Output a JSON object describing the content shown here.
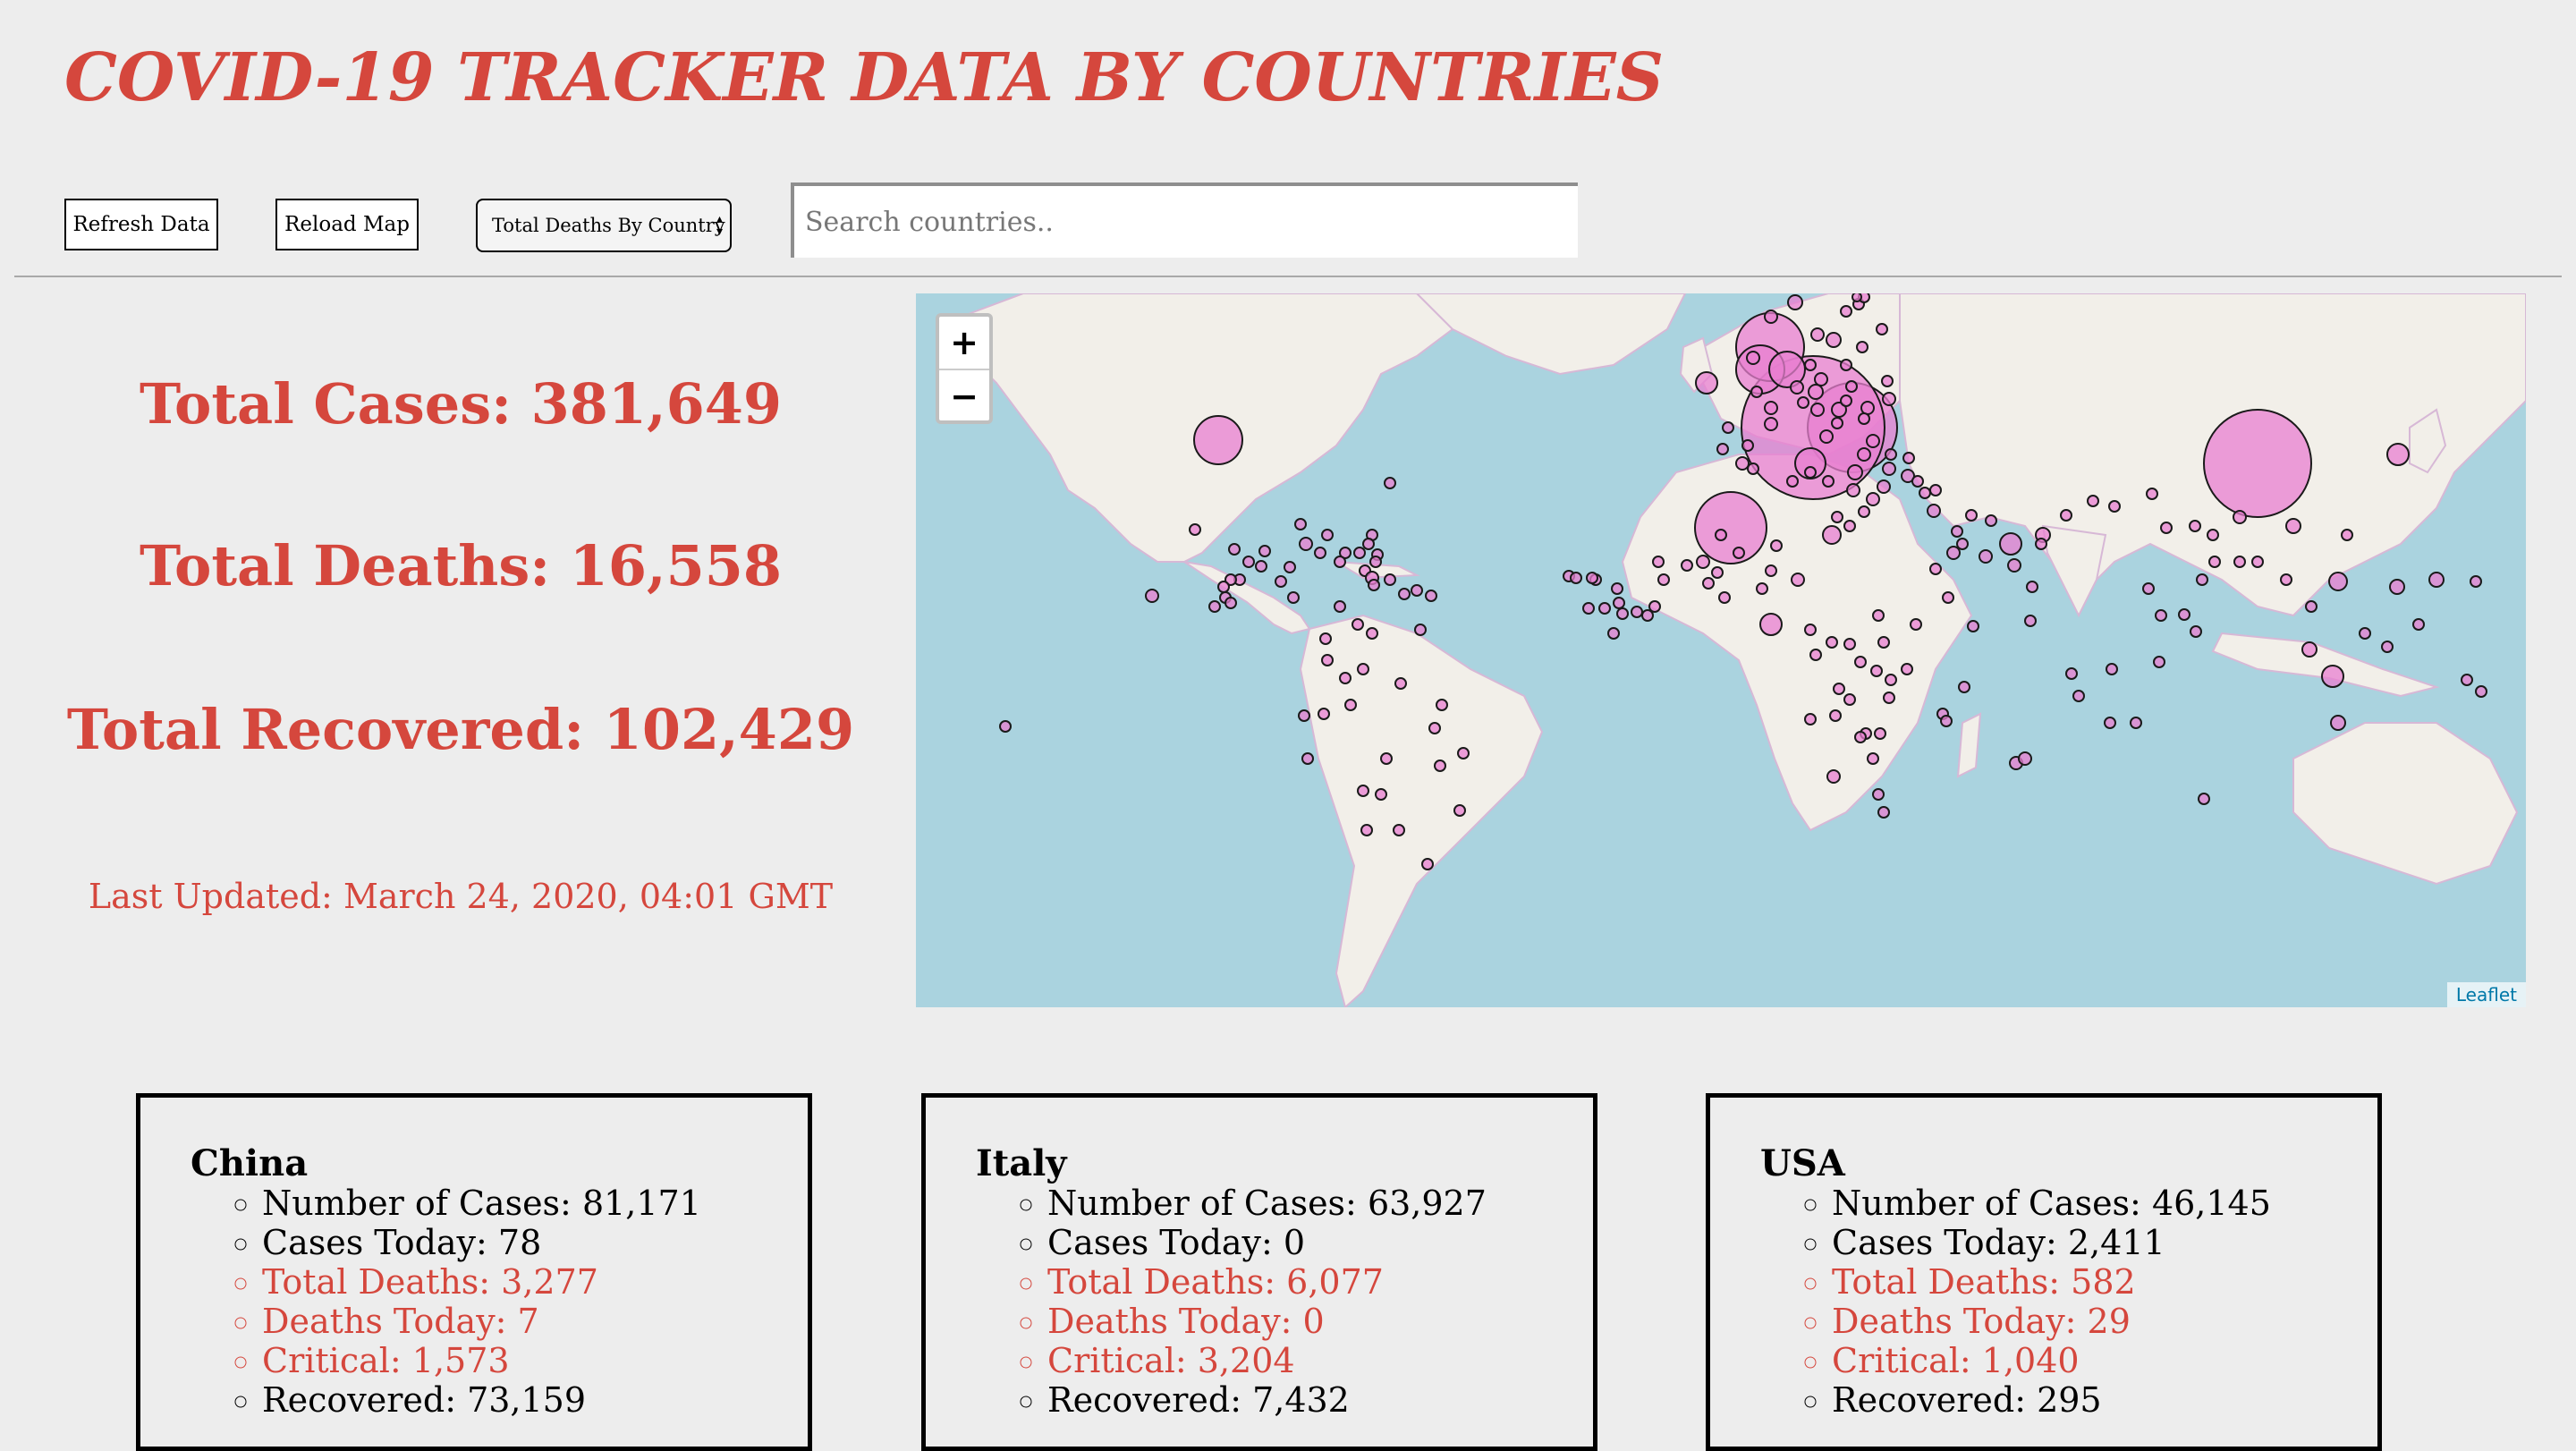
{
  "header": {
    "title": "COVID-19 TRACKER DATA BY COUNTRIES"
  },
  "toolbar": {
    "refresh_label": "Refresh Data",
    "reload_label": "Reload Map",
    "select_value": "Total Deaths By Country",
    "search_placeholder": "Search countries.."
  },
  "stats": {
    "cases": "Total Cases: 381,649",
    "deaths": "Total Deaths: 16,558",
    "recovered": "Total Recovered: 102,429",
    "last_updated": "Last Updated: March 24, 2020, 04:01 GMT"
  },
  "map": {
    "zoom_in": "+",
    "zoom_out": "−",
    "attribution": "Leaflet",
    "colors": {
      "water": "#aad3df",
      "land": "#f2efe9",
      "marker_fill": "#e87fd0",
      "marker_stroke": "#1a1a1a"
    }
  },
  "countries": [
    {
      "name": "China",
      "cases": "Number of Cases: 81,171",
      "cases_today": "Cases Today: 78",
      "deaths": "Total Deaths: 3,277",
      "deaths_today": "Deaths Today: 7",
      "critical": "Critical: 1,573",
      "recovered": "Recovered: 73,159"
    },
    {
      "name": "Italy",
      "cases": "Number of Cases: 63,927",
      "cases_today": "Cases Today: 0",
      "deaths": "Total Deaths: 6,077",
      "deaths_today": "Deaths Today: 0",
      "critical": "Critical: 3,204",
      "recovered": "Recovered: 7,432"
    },
    {
      "name": "USA",
      "cases": "Number of Cases: 46,145",
      "cases_today": "Cases Today: 2,411",
      "deaths": "Total Deaths: 582",
      "deaths_today": "Deaths Today: 29",
      "critical": "Critical: 1,040",
      "recovered": "Recovered: 295"
    }
  ]
}
